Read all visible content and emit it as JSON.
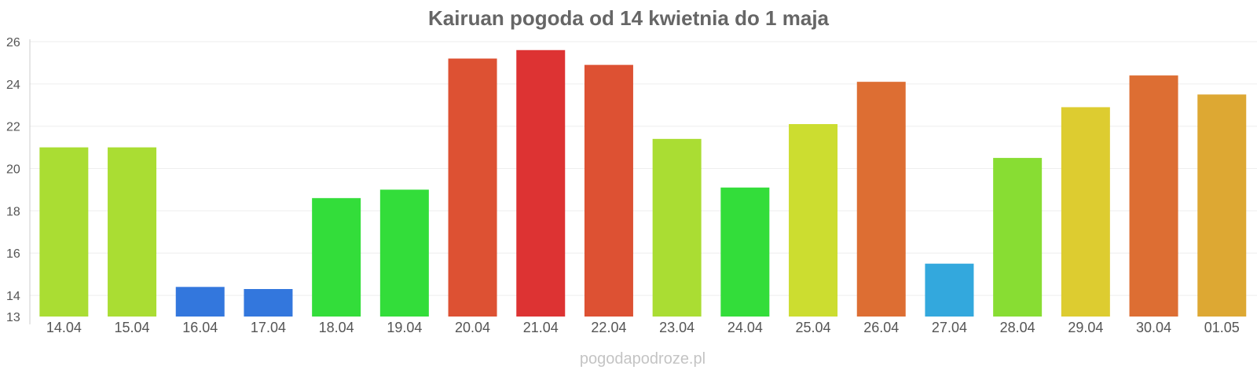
{
  "chart_data": {
    "type": "bar",
    "title": "Kairuan pogoda od 14 kwietnia do 1 maja",
    "categories": [
      "14.04",
      "15.04",
      "16.04",
      "17.04",
      "18.04",
      "19.04",
      "20.04",
      "21.04",
      "22.04",
      "23.04",
      "24.04",
      "25.04",
      "26.04",
      "27.04",
      "28.04",
      "29.04",
      "30.04",
      "01.05"
    ],
    "values": [
      21.0,
      21.0,
      14.4,
      14.3,
      18.6,
      19.0,
      25.2,
      25.6,
      24.9,
      21.4,
      19.1,
      22.1,
      24.1,
      15.5,
      20.5,
      22.9,
      24.4,
      23.5
    ],
    "colors": [
      "#aadd33",
      "#aadd33",
      "#3377dd",
      "#3377dd",
      "#33dd3a",
      "#33dd3a",
      "#dd5133",
      "#dd3333",
      "#dd5133",
      "#aadd33",
      "#33dd3a",
      "#ccdd30",
      "#dd6e33",
      "#33a8dd",
      "#88dd33",
      "#ddcc30",
      "#dd6e33",
      "#dda833"
    ],
    "ylim": [
      13,
      26
    ],
    "yticks": [
      13,
      14,
      16,
      18,
      20,
      22,
      24,
      26
    ],
    "grid": true,
    "xlabel": "",
    "ylabel": ""
  },
  "watermark": "pogodapodroze.pl"
}
